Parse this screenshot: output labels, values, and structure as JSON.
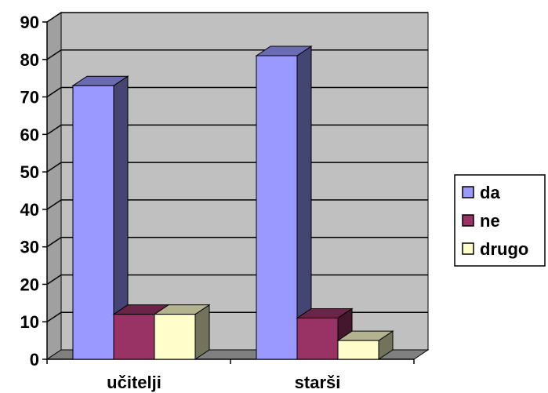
{
  "chart_data": {
    "type": "bar",
    "categories": [
      "učitelji",
      "starši"
    ],
    "series": [
      {
        "name": "da",
        "values": [
          73,
          81
        ],
        "color": "#9999FF"
      },
      {
        "name": "ne",
        "values": [
          12,
          11
        ],
        "color": "#993366"
      },
      {
        "name": "drugo",
        "values": [
          12,
          5
        ],
        "color": "#FFFFCC"
      }
    ],
    "ylim": [
      0,
      90
    ],
    "yticks": [
      "0",
      "10",
      "20",
      "30",
      "40",
      "50",
      "60",
      "70",
      "80",
      "90"
    ],
    "grid": true,
    "legend": "right",
    "three_d": true,
    "wall_color": "#C0C0C0"
  }
}
